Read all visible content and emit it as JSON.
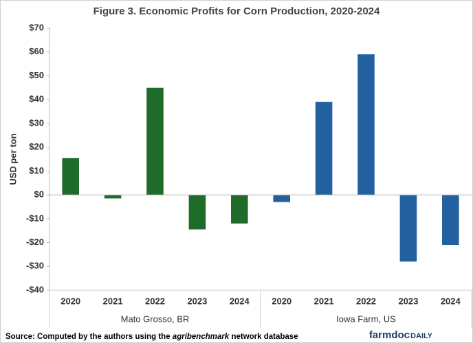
{
  "chart_data": {
    "type": "grouped-bar",
    "title": "Figure  3. Economic Profits for Corn Production, 2020-2024",
    "y_label": "USD per ton",
    "groups": [
      {
        "name": "Mato Grosso, BR",
        "color": "#1e6b2a",
        "categories": [
          "2020",
          "2021",
          "2022",
          "2023",
          "2024"
        ],
        "values": [
          15.5,
          -1.5,
          45,
          -14.5,
          -12
        ]
      },
      {
        "name": "Iowa Farm, US",
        "color": "#2360a0",
        "categories": [
          "2020",
          "2021",
          "2022",
          "2023",
          "2024"
        ],
        "values": [
          -3,
          39,
          59,
          -28,
          -21
        ]
      }
    ],
    "ylim": [
      -40,
      70
    ],
    "yticks": [
      {
        "value": -40,
        "label": "-$40"
      },
      {
        "value": -30,
        "label": "-$30"
      },
      {
        "value": -20,
        "label": "-$20"
      },
      {
        "value": -10,
        "label": "-$10"
      },
      {
        "value": 0,
        "label": "$0"
      },
      {
        "value": 10,
        "label": "$10"
      },
      {
        "value": 20,
        "label": "$20"
      },
      {
        "value": 30,
        "label": "$30"
      },
      {
        "value": 40,
        "label": "$40"
      },
      {
        "value": 50,
        "label": "$50"
      },
      {
        "value": 60,
        "label": "$60"
      },
      {
        "value": 70,
        "label": "$70"
      }
    ],
    "grid": false
  },
  "footer": {
    "source_prefix": "Source: Computed by the authors using the ",
    "source_italic": "agribenchmark",
    "source_suffix": " network database",
    "logo_main": "farmdoc",
    "logo_sub": "DAILY"
  }
}
